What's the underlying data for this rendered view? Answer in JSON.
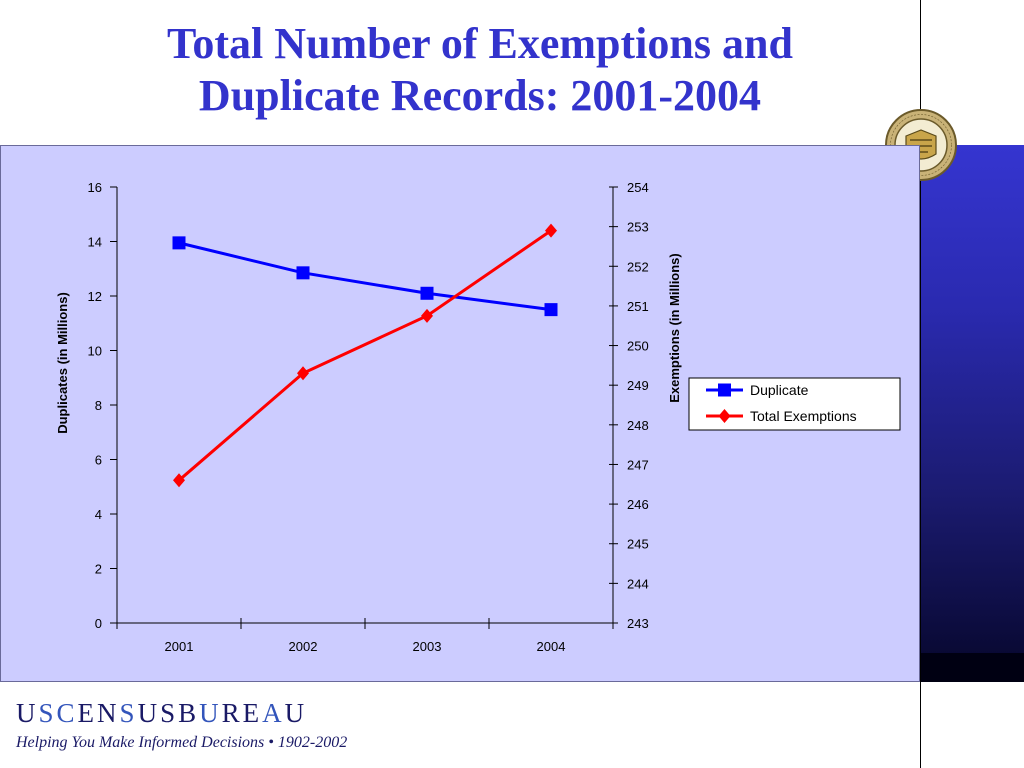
{
  "slide": {
    "title_line1": "Total Number of Exemptions and",
    "title_line2": "Duplicate Records: 2001-2004",
    "brand_word": "USCENSUSBUREAU",
    "tagline": "Helping You Make Informed Decisions • 1902-2002"
  },
  "colors": {
    "title": "#3333cc",
    "panel_bg": "#ccccff",
    "duplicate": "#0000ff",
    "exemptions": "#ff0000"
  },
  "chart_data": {
    "type": "line",
    "title": "",
    "x": [
      "2001",
      "2002",
      "2003",
      "2004"
    ],
    "left_axis": {
      "label": "Duplicates (in Millions)",
      "range": [
        0,
        16
      ],
      "ticks": [
        "0",
        "2",
        "4",
        "6",
        "8",
        "10",
        "12",
        "14",
        "16"
      ]
    },
    "right_axis": {
      "label": "Exemptions (in Millions)",
      "range": [
        243,
        254
      ],
      "ticks": [
        "243",
        "244",
        "245",
        "246",
        "247",
        "248",
        "249",
        "250",
        "251",
        "252",
        "253",
        "254"
      ]
    },
    "series": [
      {
        "name": "Duplicate",
        "axis": "left",
        "marker": "square",
        "color": "#0000ff",
        "values": [
          13.95,
          12.85,
          12.1,
          11.5
        ]
      },
      {
        "name": "Total Exemptions",
        "axis": "right",
        "marker": "diamond",
        "color": "#ff0000",
        "values": [
          246.6,
          249.3,
          250.75,
          252.9
        ]
      }
    ],
    "legend_position": "right",
    "grid": false
  }
}
